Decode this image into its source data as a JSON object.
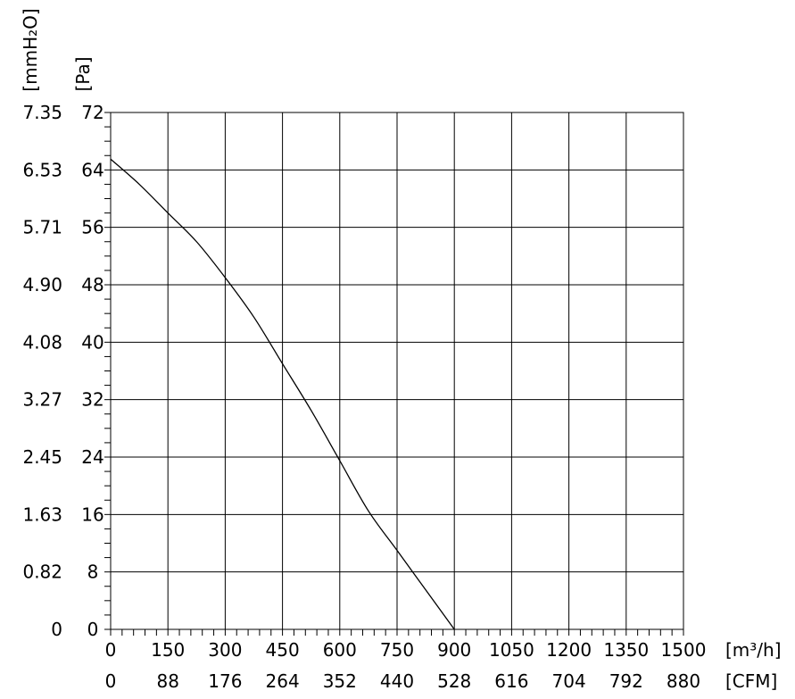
{
  "chart_data": {
    "type": "line",
    "xlabel_primary_unit": "[m³/h]",
    "xlabel_secondary_unit": "[CFM]",
    "ylabel_primary_unit": "[Pa]",
    "ylabel_secondary_unit": "[mmH₂O]",
    "xlim": [
      0,
      1500
    ],
    "ylim": [
      0,
      72
    ],
    "x_ticks": [
      0,
      150,
      300,
      450,
      600,
      750,
      900,
      1050,
      1200,
      1350,
      1500
    ],
    "x_ticks_cfm": [
      0,
      88,
      176,
      264,
      352,
      440,
      528,
      616,
      704,
      792,
      880
    ],
    "y_ticks": [
      0,
      8,
      16,
      24,
      32,
      40,
      48,
      56,
      64,
      72
    ],
    "y_ticks_mmh2o": [
      "0",
      "0.82",
      "1.63",
      "2.45",
      "3.27",
      "4.08",
      "4.90",
      "5.71",
      "6.53",
      "7.35"
    ],
    "grid": true,
    "series": [
      {
        "x": [
          0,
          75,
          150,
          225,
          300,
          375,
          450,
          525,
          600,
          675,
          750,
          825,
          900
        ],
        "y": [
          65.5,
          62,
          58,
          54,
          49,
          43.5,
          37,
          30.5,
          23.5,
          16.5,
          11,
          5.5,
          0
        ]
      }
    ]
  }
}
